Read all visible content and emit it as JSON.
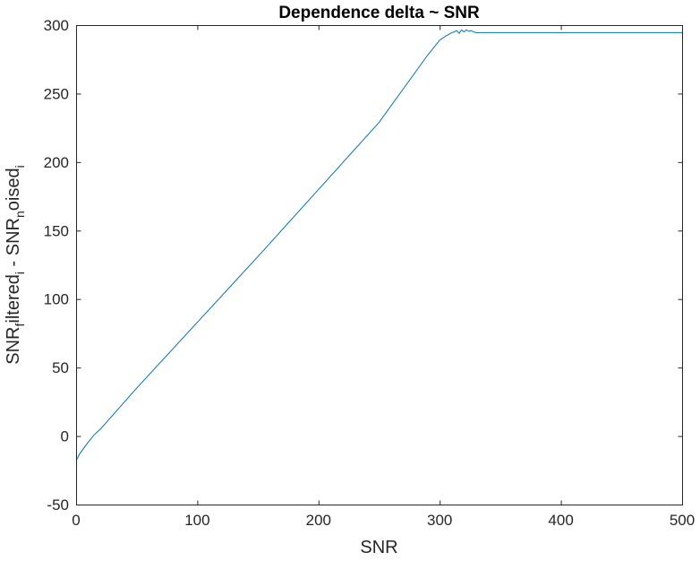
{
  "chart_data": {
    "type": "line",
    "title": "Dependence delta ~ SNR",
    "xlabel": "SNR",
    "ylabel": {
      "parts": [
        {
          "text": "SNR",
          "style": "normal"
        },
        {
          "text": "f",
          "style": "sub"
        },
        {
          "text": "iltered",
          "style": "normal"
        },
        {
          "text": "i",
          "style": "sub"
        },
        {
          "text": " - SNR",
          "style": "normal"
        },
        {
          "text": "n",
          "style": "sub"
        },
        {
          "text": "oised",
          "style": "normal"
        },
        {
          "text": "i",
          "style": "sub"
        }
      ]
    },
    "xlim": [
      0,
      500
    ],
    "ylim": [
      -50,
      300
    ],
    "xticks": [
      0,
      100,
      200,
      300,
      400,
      500
    ],
    "yticks": [
      -50,
      0,
      50,
      100,
      150,
      200,
      250,
      300
    ],
    "grid": false,
    "series": [
      {
        "color": "#0072BD",
        "x": [
          0,
          3,
          7,
          10,
          15,
          20,
          50,
          100,
          150,
          200,
          250,
          290,
          300,
          305,
          308,
          310,
          312,
          314,
          316,
          318,
          320,
          322,
          324,
          326,
          328,
          330,
          340,
          360,
          400,
          450,
          500
        ],
        "y": [
          -18,
          -13,
          -8,
          -4.5,
          1,
          5,
          35,
          83,
          131,
          180,
          229,
          278,
          289,
          292,
          293.5,
          294.5,
          295,
          296,
          294,
          296.5,
          295,
          296.5,
          295.5,
          296,
          295,
          294.5,
          294.5,
          294.5,
          294.5,
          294.5,
          294.5
        ]
      }
    ]
  }
}
